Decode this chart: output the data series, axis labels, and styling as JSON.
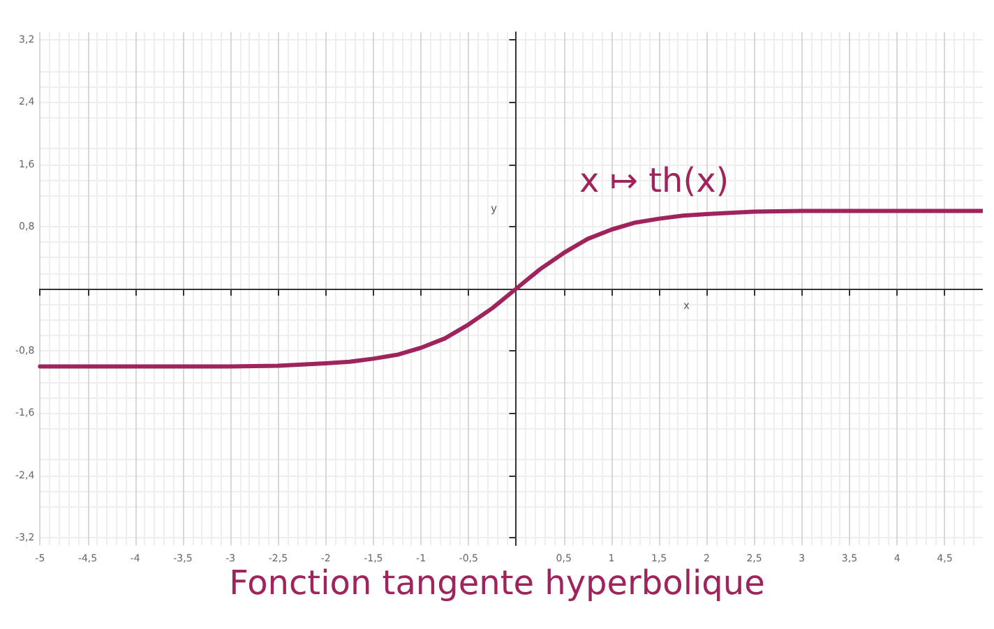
{
  "chart_data": {
    "type": "line",
    "title": "Fonction tangente hyperbolique",
    "xlabel": "x",
    "ylabel": "y",
    "x": [
      -5,
      -4,
      -3,
      -2.5,
      -2,
      -1.75,
      -1.5,
      -1.25,
      -1,
      -0.75,
      -0.5,
      -0.25,
      0,
      0.25,
      0.5,
      0.75,
      1,
      1.25,
      1.5,
      1.75,
      2,
      2.5,
      3,
      4,
      4.9
    ],
    "series": [
      {
        "name": "x ↦ th(x)",
        "color": "#a0245c",
        "values": [
          -1,
          -1,
          -1,
          -0.99,
          -0.96,
          -0.94,
          -0.9,
          -0.85,
          -0.76,
          -0.64,
          -0.46,
          -0.25,
          0,
          0.25,
          0.46,
          0.64,
          0.76,
          0.85,
          0.9,
          0.94,
          0.96,
          0.99,
          1,
          1,
          1
        ]
      }
    ],
    "xlim": [
      -5,
      4.9
    ],
    "ylim": [
      -3.3,
      3.3
    ],
    "xticks": [
      -5,
      {
        "value": -4.5,
        "label": "-4,5"
      },
      -4,
      {
        "value": -3.5,
        "label": "-3,5"
      },
      -3,
      {
        "value": -2.5,
        "label": "-2,5"
      },
      -2,
      {
        "value": -1.5,
        "label": "-1,5"
      },
      -1,
      {
        "value": -0.5,
        "label": "-0,5"
      },
      {
        "value": 0.5,
        "label": "0,5"
      },
      1,
      {
        "value": 1.5,
        "label": "1,5"
      },
      2,
      {
        "value": 2.5,
        "label": "2,5"
      },
      3,
      {
        "value": 3.5,
        "label": "3,5"
      },
      4,
      {
        "value": 4.5,
        "label": "4,5"
      }
    ],
    "yticks": [
      {
        "value": -3.2,
        "label": "-3,2"
      },
      {
        "value": -2.4,
        "label": "-2,4"
      },
      {
        "value": -1.6,
        "label": "-1,6"
      },
      {
        "value": -0.8,
        "label": "-0,8"
      },
      {
        "value": 0.8,
        "label": "0,8"
      },
      {
        "value": 1.6,
        "label": "1,6"
      },
      {
        "value": 2.4,
        "label": "2,4"
      },
      {
        "value": 3.2,
        "label": "3,2"
      }
    ],
    "grid": true,
    "marker": "none",
    "line_style": "solid",
    "legend": false
  }
}
